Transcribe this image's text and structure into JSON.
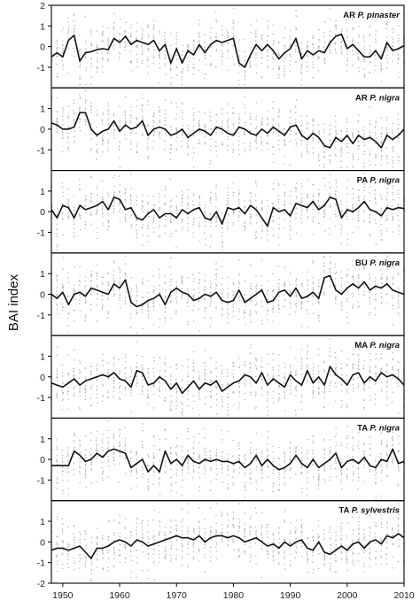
{
  "chart_data": {
    "type": "line",
    "ylabel": "BAI index",
    "xlabel": "",
    "xlim": [
      1948,
      2010
    ],
    "x_ticks": [
      1950,
      1960,
      1970,
      1980,
      1990,
      2000,
      2010
    ],
    "x_tick_labels": [
      "1950",
      "1960",
      "1970",
      "1980",
      "1990",
      "2000",
      "2010"
    ],
    "grid": false,
    "legend": "none",
    "colors": {
      "line": "#111111",
      "points": "#b8b8b8",
      "frame": "#000000"
    },
    "panels": [
      {
        "title": "AR P. pinaster",
        "title_site": "AR",
        "title_species": "P. pinaster",
        "ylim": [
          -2,
          2
        ],
        "y_ticks": [
          2,
          1,
          0,
          -1
        ],
        "x": [
          1948,
          1949,
          1950,
          1951,
          1952,
          1953,
          1954,
          1955,
          1956,
          1957,
          1958,
          1959,
          1960,
          1961,
          1962,
          1963,
          1964,
          1965,
          1966,
          1967,
          1968,
          1969,
          1970,
          1971,
          1972,
          1973,
          1974,
          1975,
          1976,
          1977,
          1978,
          1979,
          1980,
          1981,
          1982,
          1983,
          1984,
          1985,
          1986,
          1987,
          1988,
          1989,
          1990,
          1991,
          1992,
          1993,
          1994,
          1995,
          1996,
          1997,
          1998,
          1999,
          2000,
          2001,
          2002,
          2003,
          2004,
          2005,
          2006,
          2007,
          2008,
          2009,
          2010
        ],
        "y": [
          -0.5,
          -0.3,
          -0.5,
          0.3,
          0.55,
          -0.7,
          -0.3,
          -0.25,
          -0.15,
          -0.1,
          -0.15,
          0.4,
          0.2,
          0.5,
          0.1,
          0.3,
          0.2,
          0.1,
          0.3,
          -0.2,
          0.1,
          -0.8,
          -0.1,
          -0.8,
          -0.2,
          -0.4,
          0.1,
          -0.3,
          0.1,
          0.3,
          0.2,
          0.3,
          0.4,
          -0.8,
          -1.0,
          -0.4,
          0.1,
          -0.2,
          0.1,
          -0.2,
          -0.6,
          -0.3,
          -0.1,
          0.4,
          -0.6,
          -0.2,
          -0.4,
          -0.2,
          -0.3,
          0.2,
          0.5,
          0.6,
          -0.1,
          0.1,
          -0.2,
          -0.5,
          -0.5,
          -0.2,
          -0.6,
          0.2,
          -0.2,
          -0.1,
          0.05
        ]
      },
      {
        "title": "AR P. nigra",
        "title_site": "AR",
        "title_species": "P. nigra",
        "ylim": [
          -2,
          2
        ],
        "y_ticks": [
          1,
          0,
          -1
        ],
        "x": [
          1948,
          1949,
          1950,
          1951,
          1952,
          1953,
          1954,
          1955,
          1956,
          1957,
          1958,
          1959,
          1960,
          1961,
          1962,
          1963,
          1964,
          1965,
          1966,
          1967,
          1968,
          1969,
          1970,
          1971,
          1972,
          1973,
          1974,
          1975,
          1976,
          1977,
          1978,
          1979,
          1980,
          1981,
          1982,
          1983,
          1984,
          1985,
          1986,
          1987,
          1988,
          1989,
          1990,
          1991,
          1992,
          1993,
          1994,
          1995,
          1996,
          1997,
          1998,
          1999,
          2000,
          2001,
          2002,
          2003,
          2004,
          2005,
          2006,
          2007,
          2008,
          2009,
          2010
        ],
        "y": [
          0.3,
          0.2,
          0.0,
          0.0,
          0.1,
          0.8,
          0.8,
          0.0,
          -0.3,
          -0.1,
          0.0,
          0.4,
          -0.1,
          0.2,
          0.0,
          0.1,
          0.4,
          -0.3,
          0.0,
          0.1,
          0.0,
          -0.3,
          -0.2,
          0.0,
          -0.4,
          -0.2,
          0.0,
          -0.1,
          -0.3,
          0.1,
          0.0,
          -0.2,
          -0.3,
          0.1,
          0.0,
          -0.2,
          -0.3,
          0.0,
          -0.2,
          0.1,
          -0.1,
          -0.3,
          0.1,
          0.2,
          -0.3,
          -0.5,
          -0.2,
          -0.4,
          -0.8,
          -0.9,
          -0.4,
          -0.6,
          -0.3,
          -0.7,
          -0.3,
          -0.5,
          -0.4,
          -0.6,
          -0.9,
          -0.3,
          -0.5,
          -0.3,
          0.0
        ]
      },
      {
        "title": "PA P. nigra",
        "title_site": "PA",
        "title_species": "P. nigra",
        "ylim": [
          -2,
          2
        ],
        "y_ticks": [
          1,
          0,
          -1
        ],
        "x": [
          1948,
          1949,
          1950,
          1951,
          1952,
          1953,
          1954,
          1955,
          1956,
          1957,
          1958,
          1959,
          1960,
          1961,
          1962,
          1963,
          1964,
          1965,
          1966,
          1967,
          1968,
          1969,
          1970,
          1971,
          1972,
          1973,
          1974,
          1975,
          1976,
          1977,
          1978,
          1979,
          1980,
          1981,
          1982,
          1983,
          1984,
          1985,
          1986,
          1987,
          1988,
          1989,
          1990,
          1991,
          1992,
          1993,
          1994,
          1995,
          1996,
          1997,
          1998,
          1999,
          2000,
          2001,
          2002,
          2003,
          2004,
          2005,
          2006,
          2007,
          2008,
          2009,
          2010
        ],
        "y": [
          0.1,
          -0.3,
          0.3,
          0.2,
          -0.3,
          0.3,
          0.1,
          0.2,
          0.3,
          0.5,
          0.1,
          0.7,
          0.6,
          0.1,
          0.2,
          -0.3,
          -0.4,
          -0.1,
          0.1,
          -0.3,
          -0.1,
          -0.1,
          -0.3,
          0.1,
          -0.1,
          0.1,
          0.2,
          -0.3,
          -0.4,
          0.0,
          -0.6,
          0.2,
          0.1,
          0.2,
          -0.1,
          0.3,
          0.1,
          -0.3,
          -0.7,
          0.2,
          0.0,
          0.1,
          -0.2,
          0.4,
          0.3,
          0.2,
          0.5,
          0.1,
          0.3,
          0.7,
          0.6,
          -0.3,
          0.1,
          0.0,
          0.2,
          0.5,
          0.1,
          0.0,
          -0.2,
          0.2,
          0.1,
          0.2,
          0.15
        ]
      },
      {
        "title": "BU P. nigra",
        "title_site": "BU",
        "title_species": "P. nigra",
        "ylim": [
          -2,
          2
        ],
        "y_ticks": [
          1,
          0,
          -1
        ],
        "x": [
          1948,
          1949,
          1950,
          1951,
          1952,
          1953,
          1954,
          1955,
          1956,
          1957,
          1958,
          1959,
          1960,
          1961,
          1962,
          1963,
          1964,
          1965,
          1966,
          1967,
          1968,
          1969,
          1970,
          1971,
          1972,
          1973,
          1974,
          1975,
          1976,
          1977,
          1978,
          1979,
          1980,
          1981,
          1982,
          1983,
          1984,
          1985,
          1986,
          1987,
          1988,
          1989,
          1990,
          1991,
          1992,
          1993,
          1994,
          1995,
          1996,
          1997,
          1998,
          1999,
          2000,
          2001,
          2002,
          2003,
          2004,
          2005,
          2006,
          2007,
          2008,
          2009,
          2010
        ],
        "y": [
          0.0,
          -0.2,
          0.1,
          -0.5,
          0.0,
          0.1,
          -0.1,
          0.3,
          0.2,
          0.1,
          0.0,
          0.5,
          0.3,
          0.7,
          -0.4,
          -0.6,
          -0.5,
          -0.3,
          -0.2,
          0.0,
          -0.5,
          0.1,
          0.3,
          0.1,
          0.0,
          -0.3,
          -0.2,
          0.0,
          -0.1,
          0.1,
          -0.3,
          -0.4,
          -0.3,
          0.2,
          -0.4,
          -0.2,
          0.0,
          0.2,
          -0.4,
          -0.3,
          0.1,
          0.2,
          -0.1,
          0.3,
          -0.2,
          -0.1,
          0.1,
          -0.2,
          0.8,
          0.9,
          0.2,
          0.0,
          0.3,
          0.5,
          0.3,
          0.6,
          0.2,
          0.4,
          0.3,
          0.5,
          0.2,
          0.1,
          0.0
        ]
      },
      {
        "title": "MA P. nigra",
        "title_site": "MA",
        "title_species": "P. nigra",
        "ylim": [
          -2,
          2
        ],
        "y_ticks": [
          1,
          0,
          -1
        ],
        "x": [
          1948,
          1949,
          1950,
          1951,
          1952,
          1953,
          1954,
          1955,
          1956,
          1957,
          1958,
          1959,
          1960,
          1961,
          1962,
          1963,
          1964,
          1965,
          1966,
          1967,
          1968,
          1969,
          1970,
          1971,
          1972,
          1973,
          1974,
          1975,
          1976,
          1977,
          1978,
          1979,
          1980,
          1981,
          1982,
          1983,
          1984,
          1985,
          1986,
          1987,
          1988,
          1989,
          1990,
          1991,
          1992,
          1993,
          1994,
          1995,
          1996,
          1997,
          1998,
          1999,
          2000,
          2001,
          2002,
          2003,
          2004,
          2005,
          2006,
          2007,
          2008,
          2009,
          2010
        ],
        "y": [
          -0.3,
          -0.4,
          -0.5,
          -0.3,
          -0.1,
          -0.4,
          -0.2,
          -0.1,
          0.0,
          0.1,
          0.0,
          0.2,
          -0.1,
          -0.2,
          -0.5,
          0.3,
          0.2,
          -0.4,
          -0.3,
          0.0,
          -0.2,
          -0.6,
          -0.3,
          -0.8,
          -0.5,
          -0.2,
          -0.6,
          -0.3,
          -0.4,
          -0.2,
          -0.7,
          -0.5,
          -0.3,
          -0.2,
          0.1,
          0.0,
          -0.3,
          0.2,
          -0.4,
          -0.1,
          -0.3,
          -0.5,
          0.1,
          -0.2,
          -0.4,
          0.3,
          -0.3,
          0.0,
          -0.4,
          0.5,
          0.1,
          -0.1,
          -0.4,
          0.1,
          0.2,
          -0.3,
          0.0,
          -0.2,
          0.2,
          0.0,
          0.1,
          -0.1,
          -0.4
        ]
      },
      {
        "title": "TA P. nigra",
        "title_site": "TA",
        "title_species": "P. nigra",
        "ylim": [
          -2,
          2
        ],
        "y_ticks": [
          1,
          0,
          -1
        ],
        "x": [
          1948,
          1949,
          1950,
          1951,
          1952,
          1953,
          1954,
          1955,
          1956,
          1957,
          1958,
          1959,
          1960,
          1961,
          1962,
          1963,
          1964,
          1965,
          1966,
          1967,
          1968,
          1969,
          1970,
          1971,
          1972,
          1973,
          1974,
          1975,
          1976,
          1977,
          1978,
          1979,
          1980,
          1981,
          1982,
          1983,
          1984,
          1985,
          1986,
          1987,
          1988,
          1989,
          1990,
          1991,
          1992,
          1993,
          1994,
          1995,
          1996,
          1997,
          1998,
          1999,
          2000,
          2001,
          2002,
          2003,
          2004,
          2005,
          2006,
          2007,
          2008,
          2009,
          2010
        ],
        "y": [
          -0.3,
          -0.3,
          -0.3,
          -0.3,
          0.4,
          0.2,
          -0.1,
          0.0,
          0.3,
          0.1,
          0.4,
          0.5,
          0.4,
          0.3,
          -0.4,
          -0.2,
          0.0,
          -0.6,
          -0.3,
          -0.6,
          0.4,
          -0.2,
          0.0,
          -0.3,
          0.2,
          -0.1,
          -0.2,
          0.0,
          -0.1,
          0.0,
          -0.1,
          -0.1,
          -0.2,
          -0.1,
          -0.4,
          -0.2,
          0.2,
          -0.3,
          0.0,
          -0.3,
          -0.5,
          -0.4,
          -0.2,
          0.2,
          -0.2,
          -0.4,
          0.0,
          -0.4,
          -0.2,
          0.0,
          0.3,
          -0.4,
          -0.1,
          0.0,
          -0.2,
          0.1,
          -0.3,
          -0.4,
          0.0,
          -0.1,
          0.5,
          -0.2,
          -0.1
        ]
      },
      {
        "title": "TA P. sylvestris",
        "title_site": "TA",
        "title_species": "P. sylvestris",
        "ylim": [
          -2,
          2
        ],
        "y_ticks": [
          1,
          0,
          -1,
          -2
        ],
        "x": [
          1948,
          1949,
          1950,
          1951,
          1952,
          1953,
          1954,
          1955,
          1956,
          1957,
          1958,
          1959,
          1960,
          1961,
          1962,
          1963,
          1964,
          1965,
          1966,
          1967,
          1968,
          1969,
          1970,
          1971,
          1972,
          1973,
          1974,
          1975,
          1976,
          1977,
          1978,
          1979,
          1980,
          1981,
          1982,
          1983,
          1984,
          1985,
          1986,
          1987,
          1988,
          1989,
          1990,
          1991,
          1992,
          1993,
          1994,
          1995,
          1996,
          1997,
          1998,
          1999,
          2000,
          2001,
          2002,
          2003,
          2004,
          2005,
          2006,
          2007,
          2008,
          2009,
          2010
        ],
        "y": [
          -0.4,
          -0.3,
          -0.3,
          -0.4,
          -0.3,
          -0.2,
          -0.5,
          -0.8,
          -0.3,
          -0.3,
          -0.2,
          0.0,
          0.1,
          0.0,
          -0.2,
          0.1,
          0.0,
          -0.2,
          -0.1,
          0.0,
          0.1,
          0.2,
          0.3,
          0.2,
          0.2,
          0.1,
          0.3,
          0.0,
          0.2,
          0.3,
          0.3,
          0.2,
          0.3,
          0.2,
          0.0,
          0.1,
          0.2,
          0.0,
          -0.2,
          -0.1,
          -0.3,
          0.0,
          -0.2,
          0.0,
          0.1,
          -0.3,
          -0.4,
          0.0,
          -0.5,
          -0.6,
          -0.4,
          -0.2,
          -0.4,
          -0.1,
          0.0,
          -0.3,
          0.0,
          0.1,
          -0.1,
          0.3,
          0.2,
          0.4,
          0.2
        ]
      }
    ]
  }
}
